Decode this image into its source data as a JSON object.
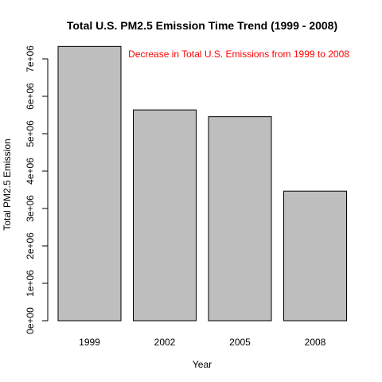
{
  "chart_data": {
    "type": "bar",
    "title": "Total U.S. PM2.5 Emission Time Trend (1999 - 2008)",
    "xlabel": "Year",
    "ylabel": "Total PM2.5 Emission",
    "categories": [
      "1999",
      "2002",
      "2005",
      "2008"
    ],
    "values": [
      7332967,
      5635780,
      5454703,
      3464206
    ],
    "ylim": [
      0,
      7000000
    ],
    "yticks": [
      0,
      1000000,
      2000000,
      3000000,
      4000000,
      5000000,
      6000000,
      7000000
    ],
    "ytick_labels": [
      "0e+00",
      "1e+06",
      "2e+06",
      "3e+06",
      "4e+06",
      "5e+06",
      "6e+06",
      "7e+06"
    ],
    "bar_color": "#bebebe",
    "bar_border_color": "#000000",
    "annotation": {
      "text": "Decrease in Total U.S. Emissions from 1999 to 2008",
      "color": "#ff0000"
    },
    "grid": false,
    "legend": "none"
  }
}
